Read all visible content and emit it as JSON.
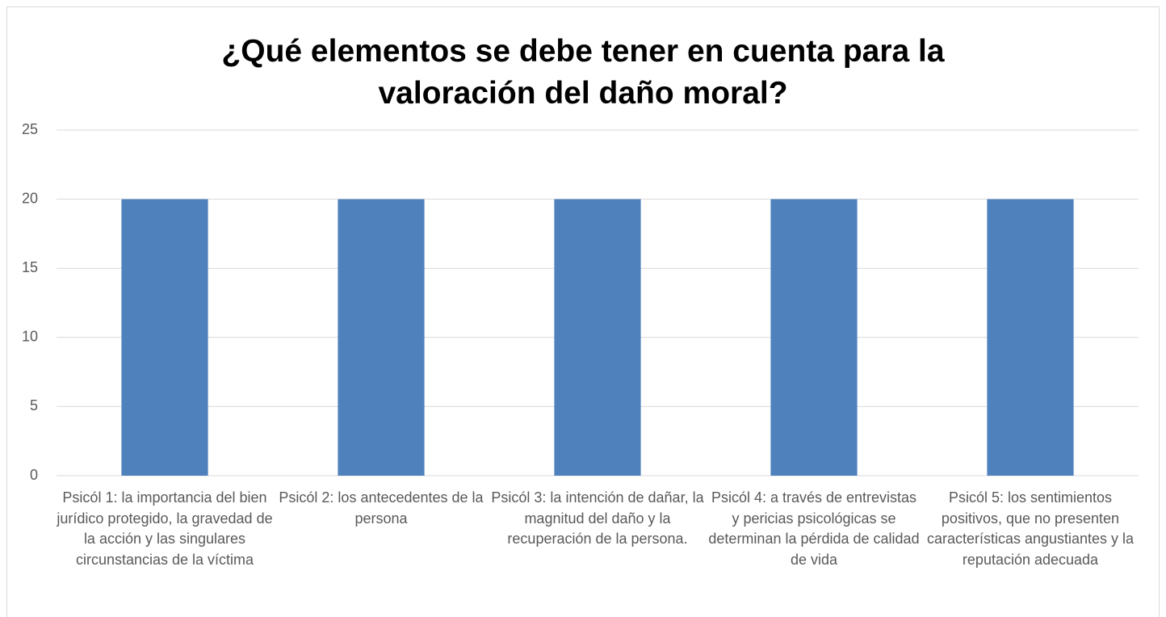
{
  "chart_data": {
    "type": "bar",
    "title": "¿Qué elementos se debe tener en cuenta para la valoración del daño moral?",
    "categories": [
      "Psicól 1: la importancia del bien jurídico protegido, la gravedad de la acción y las singulares circunstancias de la víctima",
      "Psicól 2: los antecedentes de la persona",
      "Psicól 3: la intención de dañar, la magnitud del daño y la recuperación de la persona.",
      "Psicól 4: a través de entrevistas y pericias psicológicas se determinan la pérdida de calidad de vida",
      "Psicól 5: los sentimientos positivos, que no presenten características angustiantes y la reputación adecuada"
    ],
    "values": [
      20,
      20,
      20,
      20,
      20
    ],
    "color": "#4f81bd",
    "ylim": [
      0,
      25
    ],
    "yticks": [
      0,
      5,
      10,
      15,
      20,
      25
    ],
    "grid": true
  }
}
